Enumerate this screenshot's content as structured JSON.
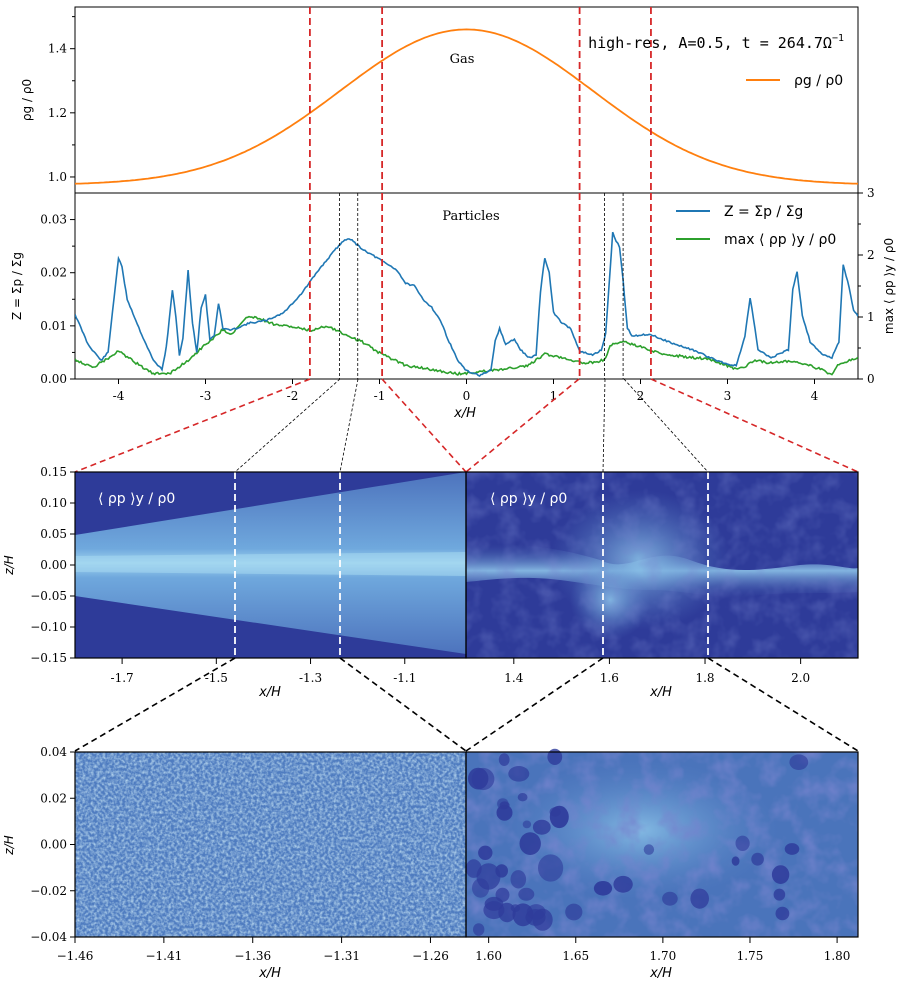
{
  "chart_data": [
    {
      "type": "line",
      "panel": "gas",
      "annotation": "high-res, A=0.5, t = 264.7Ω",
      "annotation_sup": "−1",
      "label": "Gas",
      "ylabel": "ρg / ρ0",
      "xlim": [
        -4.5,
        4.5
      ],
      "ylim": [
        0.95,
        1.53
      ],
      "yticks": [
        "1.0",
        "1.2",
        "1.4"
      ],
      "ytick_values": [
        1.0,
        1.2,
        1.4
      ],
      "legend": "top-right",
      "series": [
        {
          "name": "ρg / ρ0",
          "color": "#ff7f0e",
          "profile": {
            "base": 0.975,
            "amplitude": 0.485,
            "center": 0.0,
            "width": 1.45
          }
        }
      ],
      "vlines": {
        "color": "#d62728",
        "x": [
          -1.8,
          -0.97,
          1.3,
          2.12
        ]
      }
    },
    {
      "type": "line",
      "panel": "particles",
      "label": "Particles",
      "xlabel": "x/H",
      "ylabel": "Z = Σp / Σg",
      "ylabel_right": "max ⟨ ρp ⟩y / ρ0",
      "xlim": [
        -4.5,
        4.5
      ],
      "ylim": [
        0,
        0.035
      ],
      "ylim_right": [
        0,
        3
      ],
      "xticks": [
        "-4",
        "-3",
        "-2",
        "-1",
        "0",
        "1",
        "2",
        "3",
        "4"
      ],
      "xtick_values": [
        -4,
        -3,
        -2,
        -1,
        0,
        1,
        2,
        3,
        4
      ],
      "yticks": [
        "0.00",
        "0.01",
        "0.02",
        "0.03"
      ],
      "ytick_values": [
        0,
        0.01,
        0.02,
        0.03
      ],
      "yticks_right": [
        "0",
        "1",
        "2",
        "3"
      ],
      "ytick_values_right": [
        0,
        1,
        2,
        3
      ],
      "legend": "top-right",
      "series": [
        {
          "name": "Z = Σp / Σg",
          "color": "#1f77b4",
          "points": [
            [
              -4.5,
              0.0122
            ],
            [
              -4.35,
              0.0065
            ],
            [
              -4.2,
              0.0035
            ],
            [
              -4.12,
              0.005
            ],
            [
              -4.05,
              0.0155
            ],
            [
              -4.0,
              0.0228
            ],
            [
              -3.96,
              0.021
            ],
            [
              -3.9,
              0.015
            ],
            [
              -3.75,
              0.009
            ],
            [
              -3.6,
              0.0035
            ],
            [
              -3.5,
              0.0018
            ],
            [
              -3.45,
              0.006
            ],
            [
              -3.38,
              0.0168
            ],
            [
              -3.34,
              0.0115
            ],
            [
              -3.3,
              0.0045
            ],
            [
              -3.26,
              0.0075
            ],
            [
              -3.2,
              0.0205
            ],
            [
              -3.15,
              0.0105
            ],
            [
              -3.1,
              0.005
            ],
            [
              -3.05,
              0.0135
            ],
            [
              -3.0,
              0.0158
            ],
            [
              -2.95,
              0.0075
            ],
            [
              -2.9,
              0.0082
            ],
            [
              -2.85,
              0.0143
            ],
            [
              -2.8,
              0.0095
            ],
            [
              -2.7,
              0.0092
            ],
            [
              -2.5,
              0.0105
            ],
            [
              -2.3,
              0.011
            ],
            [
              -2.1,
              0.0125
            ],
            [
              -1.9,
              0.016
            ],
            [
              -1.7,
              0.0205
            ],
            [
              -1.5,
              0.0245
            ],
            [
              -1.4,
              0.0262
            ],
            [
              -1.35,
              0.0265
            ],
            [
              -1.2,
              0.0245
            ],
            [
              -1.0,
              0.0225
            ],
            [
              -0.8,
              0.0205
            ],
            [
              -0.7,
              0.018
            ],
            [
              -0.6,
              0.0175
            ],
            [
              -0.5,
              0.015
            ],
            [
              -0.4,
              0.0135
            ],
            [
              -0.3,
              0.011
            ],
            [
              -0.2,
              0.007
            ],
            [
              -0.1,
              0.0035
            ],
            [
              0.0,
              0.0015
            ],
            [
              0.15,
              0.0007
            ],
            [
              0.28,
              0.0015
            ],
            [
              0.33,
              0.0072
            ],
            [
              0.38,
              0.0095
            ],
            [
              0.45,
              0.0065
            ],
            [
              0.55,
              0.0075
            ],
            [
              0.62,
              0.0055
            ],
            [
              0.72,
              0.004
            ],
            [
              0.8,
              0.0045
            ],
            [
              0.85,
              0.0165
            ],
            [
              0.9,
              0.0228
            ],
            [
              0.95,
              0.02
            ],
            [
              1.0,
              0.0125
            ],
            [
              1.1,
              0.0105
            ],
            [
              1.2,
              0.0095
            ],
            [
              1.3,
              0.0052
            ],
            [
              1.45,
              0.0045
            ],
            [
              1.55,
              0.0055
            ],
            [
              1.6,
              0.0085
            ],
            [
              1.65,
              0.0205
            ],
            [
              1.68,
              0.0275
            ],
            [
              1.72,
              0.026
            ],
            [
              1.76,
              0.0248
            ],
            [
              1.8,
              0.0185
            ],
            [
              1.85,
              0.0095
            ],
            [
              1.9,
              0.0082
            ],
            [
              2.0,
              0.0082
            ],
            [
              2.1,
              0.0085
            ],
            [
              2.2,
              0.0078
            ],
            [
              2.4,
              0.0065
            ],
            [
              2.6,
              0.0055
            ],
            [
              2.8,
              0.004
            ],
            [
              3.0,
              0.0028
            ],
            [
              3.1,
              0.0025
            ],
            [
              3.2,
              0.008
            ],
            [
              3.26,
              0.0152
            ],
            [
              3.3,
              0.0113
            ],
            [
              3.35,
              0.0055
            ],
            [
              3.5,
              0.004
            ],
            [
              3.7,
              0.0055
            ],
            [
              3.75,
              0.017
            ],
            [
              3.8,
              0.0202
            ],
            [
              3.86,
              0.012
            ],
            [
              3.95,
              0.007
            ],
            [
              4.1,
              0.0045
            ],
            [
              4.2,
              0.004
            ],
            [
              4.28,
              0.007
            ],
            [
              4.33,
              0.0215
            ],
            [
              4.38,
              0.0185
            ],
            [
              4.45,
              0.013
            ],
            [
              4.5,
              0.0118
            ]
          ]
        },
        {
          "name": "max ⟨ ρp ⟩y / ρ0",
          "color": "#2ca02c",
          "axis": "right",
          "points": [
            [
              -4.5,
              0.32
            ],
            [
              -4.3,
              0.18
            ],
            [
              -4.1,
              0.35
            ],
            [
              -4.0,
              0.45
            ],
            [
              -3.8,
              0.26
            ],
            [
              -3.6,
              0.08
            ],
            [
              -3.4,
              0.1
            ],
            [
              -3.2,
              0.3
            ],
            [
              -3.0,
              0.56
            ],
            [
              -2.9,
              0.67
            ],
            [
              -2.8,
              0.8
            ],
            [
              -2.7,
              0.72
            ],
            [
              -2.6,
              0.88
            ],
            [
              -2.5,
              1.02
            ],
            [
              -2.35,
              0.96
            ],
            [
              -2.2,
              0.88
            ],
            [
              -2.0,
              0.84
            ],
            [
              -1.8,
              0.78
            ],
            [
              -1.6,
              0.86
            ],
            [
              -1.4,
              0.72
            ],
            [
              -1.2,
              0.6
            ],
            [
              -1.0,
              0.42
            ],
            [
              -0.7,
              0.22
            ],
            [
              -0.4,
              0.15
            ],
            [
              -0.1,
              0.08
            ],
            [
              0.3,
              0.14
            ],
            [
              0.7,
              0.21
            ],
            [
              0.9,
              0.4
            ],
            [
              1.1,
              0.35
            ],
            [
              1.3,
              0.27
            ],
            [
              1.5,
              0.26
            ],
            [
              1.6,
              0.33
            ],
            [
              1.65,
              0.55
            ],
            [
              1.8,
              0.6
            ],
            [
              2.0,
              0.52
            ],
            [
              2.2,
              0.42
            ],
            [
              2.5,
              0.36
            ],
            [
              2.8,
              0.32
            ],
            [
              3.1,
              0.16
            ],
            [
              3.2,
              0.2
            ],
            [
              3.3,
              0.3
            ],
            [
              3.5,
              0.26
            ],
            [
              3.7,
              0.29
            ],
            [
              3.9,
              0.24
            ],
            [
              4.1,
              0.14
            ],
            [
              4.2,
              0.06
            ],
            [
              4.25,
              0.2
            ],
            [
              4.4,
              0.3
            ],
            [
              4.5,
              0.35
            ]
          ]
        }
      ],
      "vlines": {
        "color": "#d62728",
        "x": [
          -1.8,
          -0.97,
          1.3,
          2.12
        ]
      },
      "zoom_lines": {
        "x": [
          -1.46,
          -1.25,
          1.587,
          1.8
        ]
      }
    },
    {
      "type": "heatmap",
      "panel": "zoom1",
      "ylabel": "z/H",
      "xlabel": "x/H",
      "colorbar_label": "⟨ ρp ⟩y / ρ0",
      "ylim": [
        -0.15,
        0.15
      ],
      "yticks": [
        "−0.15",
        "−0.10",
        "−0.05",
        "0.00",
        "0.05",
        "0.10",
        "0.15"
      ],
      "ytick_values": [
        -0.15,
        -0.1,
        -0.05,
        0.0,
        0.05,
        0.1,
        0.15
      ],
      "left": {
        "xlim": [
          -1.8,
          -0.97
        ],
        "xticks": [
          "-1.7",
          "-1.5",
          "-1.3",
          "-1.1"
        ],
        "xtick_values": [
          -1.7,
          -1.5,
          -1.3,
          -1.1
        ],
        "label": "⟨ ρp ⟩y / ρ0",
        "zoom_lines": [
          -1.46,
          -1.25
        ]
      },
      "right": {
        "xlim": [
          1.3,
          2.12
        ],
        "xticks": [
          "1.4",
          "1.6",
          "1.8",
          "2.0"
        ],
        "xtick_values": [
          1.4,
          1.6,
          1.8,
          2.0
        ],
        "label": "⟨ ρp ⟩y / ρ0",
        "zoom_lines": [
          1.587,
          1.8
        ]
      }
    },
    {
      "type": "heatmap",
      "panel": "zoom2",
      "ylabel": "z/H",
      "xlabel": "x/H",
      "ylim": [
        -0.04,
        0.04
      ],
      "yticks": [
        "−0.04",
        "−0.02",
        "0.00",
        "0.02",
        "0.04"
      ],
      "ytick_values": [
        -0.04,
        -0.02,
        0.0,
        0.02,
        0.04
      ],
      "left": {
        "xlim": [
          -1.46,
          -1.24
        ],
        "xticks": [
          "−1.46",
          "−1.41",
          "−1.36",
          "−1.31",
          "−1.26"
        ],
        "xtick_values": [
          -1.46,
          -1.41,
          -1.36,
          -1.31,
          -1.26
        ]
      },
      "right": {
        "xlim": [
          1.587,
          1.812
        ],
        "xticks": [
          "1.60",
          "1.65",
          "1.70",
          "1.75",
          "1.80"
        ],
        "xtick_values": [
          1.6,
          1.65,
          1.7,
          1.75,
          1.8
        ]
      }
    }
  ],
  "colors": {
    "gas": "#ff7f0e",
    "metallicity": "#1f77b4",
    "maxdensity": "#2ca02c",
    "marker": "#d62728",
    "map_dark": "#2e3b99",
    "map_light": "#9ed3ee"
  }
}
